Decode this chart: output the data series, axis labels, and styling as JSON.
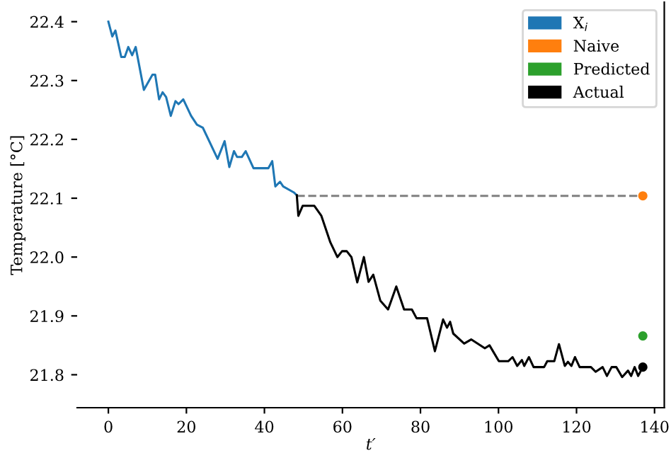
{
  "chart_data": {
    "type": "line",
    "xlabel": "t′",
    "ylabel": "Temperature [°C]",
    "xlim": [
      -8,
      142.5
    ],
    "ylim": [
      21.744,
      22.433
    ],
    "xticks": [
      0,
      20,
      40,
      60,
      80,
      100,
      120,
      140
    ],
    "yticks": [
      21.8,
      21.9,
      {
        "value": 22,
        "label": "22.0"
      },
      22.1,
      22.2,
      22.3,
      22.4
    ],
    "grid": false,
    "legend": "top right",
    "series": [
      {
        "name": "X$_{i}$",
        "color": "#1f77b4",
        "x": [
          0,
          1,
          1.8,
          3.3,
          4.2,
          5.1,
          6.1,
          7,
          9.1,
          11.3,
          12,
          13,
          13.9,
          14.8,
          16,
          17.2,
          18,
          19.2,
          21.2,
          22.7,
          24.2,
          28,
          29.8,
          31,
          32.2,
          33,
          34.2,
          35.2,
          37.2,
          41,
          42,
          42.8,
          44,
          44.8,
          47.5,
          48.3
        ],
        "values": [
          22.4,
          22.375,
          22.385,
          22.34,
          22.34,
          22.357,
          22.343,
          22.357,
          22.284,
          22.31,
          22.31,
          22.268,
          22.28,
          22.272,
          22.24,
          22.265,
          22.26,
          22.268,
          22.24,
          22.225,
          22.22,
          22.167,
          22.197,
          22.153,
          22.18,
          22.17,
          22.17,
          22.18,
          22.151,
          22.151,
          22.163,
          22.12,
          22.128,
          22.12,
          22.11,
          22.105
        ]
      },
      {
        "color": "#808080",
        "type": "line",
        "line_style": "dashed",
        "x": [
          48.3,
          137
        ],
        "values": [
          22.104,
          22.104
        ]
      },
      {
        "name": "Naive",
        "color": "#ff7f0e",
        "type": "scatter",
        "marker": "circle",
        "x": [
          137
        ],
        "values": [
          22.104
        ]
      },
      {
        "name": "Predicted",
        "color": "#2ca02c",
        "type": "scatter",
        "marker": "circle",
        "x": [
          137
        ],
        "values": [
          21.866
        ]
      },
      {
        "name": "Actual",
        "color": "#000000",
        "x": [
          48.3,
          48.7,
          49.8,
          52.8,
          54.6,
          56.9,
          58.7,
          59.9,
          61.1,
          62.3,
          63.8,
          65.5,
          66.7,
          67.9,
          69.7,
          71.7,
          73.8,
          75.8,
          77.8,
          79,
          81.7,
          83.7,
          85.8,
          86.8,
          87.6,
          88.4,
          91.2,
          93,
          96.5,
          97.7,
          100.1,
          102.5,
          103.6,
          104.8,
          106,
          106.6,
          107.8,
          109,
          111.7,
          112.5,
          114.3,
          115.5,
          117,
          117.8,
          118.7,
          119.6,
          120.8,
          123.7,
          124.9,
          126.7,
          127.8,
          129,
          130.2,
          131.7,
          133.2,
          134,
          134.9,
          135.8,
          137
        ],
        "values": [
          22.105,
          22.07,
          22.087,
          22.087,
          22.07,
          22.025,
          22.0,
          22.01,
          22.01,
          22.0,
          21.957,
          22.0,
          21.958,
          21.97,
          21.926,
          21.911,
          21.95,
          21.911,
          21.911,
          21.896,
          21.896,
          21.84,
          21.894,
          21.88,
          21.89,
          21.87,
          21.853,
          21.86,
          21.845,
          21.85,
          21.823,
          21.823,
          21.83,
          21.815,
          21.825,
          21.815,
          21.83,
          21.813,
          21.813,
          21.823,
          21.823,
          21.852,
          21.815,
          21.822,
          21.815,
          21.83,
          21.813,
          21.813,
          21.805,
          21.813,
          21.798,
          21.813,
          21.813,
          21.796,
          21.807,
          21.798,
          21.813,
          21.798,
          21.813
        ]
      },
      {
        "color": "#000000",
        "type": "scatter",
        "marker": "circle",
        "x": [
          137
        ],
        "values": [
          21.813
        ]
      }
    ]
  }
}
